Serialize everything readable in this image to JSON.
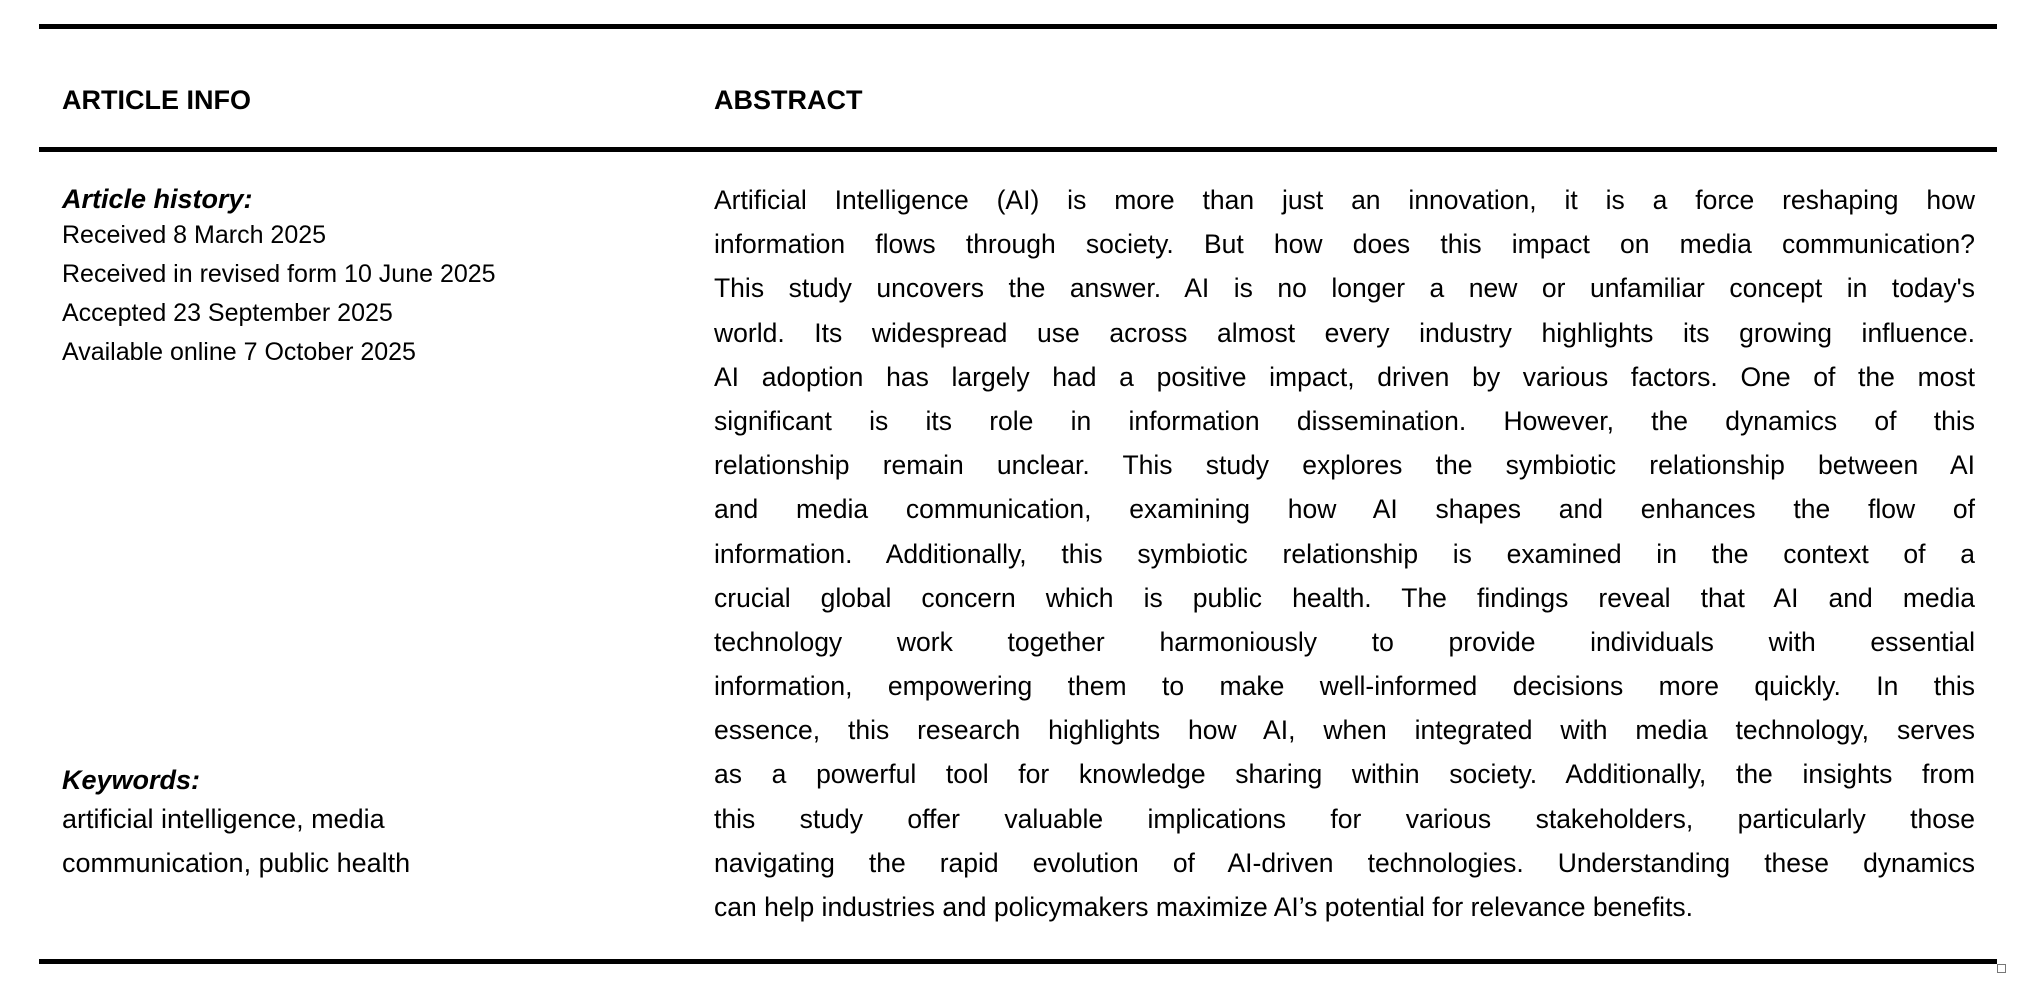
{
  "headers": {
    "article_info": "ARTICLE INFO",
    "abstract": "ABSTRACT"
  },
  "article_history": {
    "title": "Article history:",
    "lines": [
      "Received 8 March 2025",
      "Received in revised form 10 June 2025",
      "Accepted 23 September 2025",
      "Available online 7 October 2025"
    ]
  },
  "keywords": {
    "title": "Keywords:",
    "lines": [
      "artificial intelligence, media",
      "communication, public health"
    ]
  },
  "abstract_lines": [
    "Artificial Intelligence (AI) is more than just an innovation, it is a force reshaping how",
    "information flows through society. But how does this impact on media communication?",
    "This study uncovers the answer. AI is no longer a new or unfamiliar concept in today's",
    "world. Its widespread use across almost every industry highlights its growing influence.",
    "AI adoption has largely had a positive impact, driven by various factors. One of the most",
    "significant is its role in information dissemination. However, the dynamics of this",
    "relationship remain unclear. This study explores the symbiotic relationship between AI",
    "and media communication, examining how AI shapes and enhances the flow of",
    "information. Additionally, this symbiotic relationship is examined in the context of a",
    "crucial global concern which is public health. The findings reveal that AI and media",
    "technology work together harmoniously to provide individuals with essential",
    "information, empowering them to make well-informed decisions more quickly. In this",
    "essence, this research highlights how AI, when integrated with media technology, serves",
    "as a powerful tool for knowledge sharing within society. Additionally, the insights from",
    "this study offer valuable implications for various stakeholders, particularly those",
    "navigating the rapid evolution of AI-driven technologies. Understanding these dynamics",
    "can help industries and policymakers maximize AI’s potential for relevance benefits."
  ]
}
